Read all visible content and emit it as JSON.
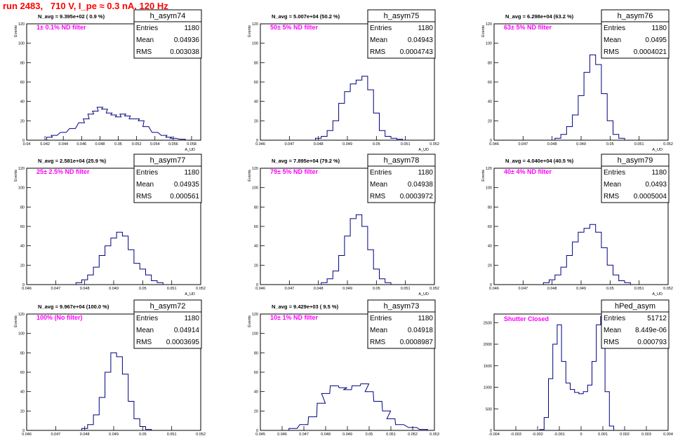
{
  "header": {
    "run_title": "run 2483,   710 V, I_pe ≈ 0.3 nA, 120 Hz"
  },
  "colors": {
    "title": "#ff0000",
    "histogram": "#000080",
    "annotation": "#ff00ff",
    "axis": "#000000"
  },
  "stat_labels": [
    "Entries",
    "Mean",
    "RMS"
  ],
  "chart_data": [
    {
      "type": "histogram",
      "name": "h_asym74",
      "navg": "N_avg = 9.395e+02 ( 0.9 %)",
      "filter": "1± 0.1% ND filter",
      "stats": [
        "1180",
        "0.04936",
        "0.003038"
      ],
      "ylabel": "Events",
      "xlabel": "A_UD",
      "xlim": [
        0.04,
        0.059
      ],
      "ylim": [
        0,
        120
      ],
      "xticks": [
        "0.04",
        "0.042",
        "0.044",
        "0.046",
        "0.048",
        "0.05",
        "0.052",
        "0.054",
        "0.056",
        "0.058"
      ],
      "xtick_values": [
        0.04,
        0.042,
        0.044,
        0.046,
        0.048,
        0.05,
        0.052,
        0.054,
        0.056,
        0.058
      ],
      "yticks": [
        "0",
        "20",
        "40",
        "60",
        "80",
        "100",
        "120"
      ],
      "x": [
        0.0425,
        0.043,
        0.044,
        0.045,
        0.046,
        0.0465,
        0.047,
        0.0475,
        0.048,
        0.0485,
        0.049,
        0.0495,
        0.05,
        0.0505,
        0.051,
        0.0515,
        0.052,
        0.0525,
        0.053,
        0.054,
        0.055,
        0.0555,
        0.056,
        0.057
      ],
      "y": [
        3,
        5,
        8,
        12,
        18,
        22,
        27,
        30,
        34,
        32,
        28,
        26,
        24,
        27,
        25,
        22,
        22,
        20,
        14,
        8,
        5,
        3,
        2,
        1
      ]
    },
    {
      "type": "histogram",
      "name": "h_asym75",
      "navg": "N_avg = 5.007e+04 (50.2 %)",
      "filter": "50± 5% ND filter",
      "stats": [
        "1180",
        "0.04943",
        "0.0004743"
      ],
      "ylabel": "Events",
      "xlabel": "A_UD",
      "xlim": [
        0.046,
        0.052
      ],
      "ylim": [
        0,
        120
      ],
      "xticks": [
        "0.046",
        "0.047",
        "0.048",
        "0.049",
        "0.05",
        "0.051",
        "0.052"
      ],
      "xtick_values": [
        0.046,
        0.047,
        0.048,
        0.049,
        0.05,
        0.051,
        0.052
      ],
      "yticks": [
        "0",
        "20",
        "40",
        "60",
        "80",
        "100",
        "120"
      ],
      "x": [
        0.048,
        0.0482,
        0.0484,
        0.0486,
        0.0488,
        0.049,
        0.0492,
        0.0494,
        0.0496,
        0.0498,
        0.05,
        0.0502,
        0.0504,
        0.0506,
        0.0508
      ],
      "y": [
        2,
        4,
        10,
        20,
        38,
        50,
        58,
        62,
        66,
        52,
        28,
        10,
        4,
        2,
        1
      ]
    },
    {
      "type": "histogram",
      "name": "h_asym76",
      "navg": "N_avg = 6.298e+04 (63.2 %)",
      "filter": "63± 5% ND filter",
      "stats": [
        "1180",
        "0.0495",
        "0.0004021"
      ],
      "ylabel": "Events",
      "xlabel": "A_UD",
      "xlim": [
        0.046,
        0.052
      ],
      "ylim": [
        0,
        120
      ],
      "xticks": [
        "0.046",
        "0.047",
        "0.048",
        "0.049",
        "0.05",
        "0.051",
        "0.052"
      ],
      "xtick_values": [
        0.046,
        0.047,
        0.048,
        0.049,
        0.05,
        0.051,
        0.052
      ],
      "yticks": [
        "0",
        "20",
        "40",
        "60",
        "80",
        "100",
        "120"
      ],
      "x": [
        0.0482,
        0.0484,
        0.0486,
        0.0488,
        0.049,
        0.0492,
        0.0494,
        0.0496,
        0.0498,
        0.05,
        0.0502,
        0.0504
      ],
      "y": [
        2,
        6,
        14,
        26,
        46,
        70,
        88,
        78,
        48,
        20,
        6,
        2
      ]
    },
    {
      "type": "histogram",
      "name": "h_asym77",
      "navg": "N_avg = 2.581e+04 (25.9 %)",
      "filter": "25± 2.5% ND filter",
      "stats": [
        "1180",
        "0.04935",
        "0.000561"
      ],
      "ylabel": "Events",
      "xlabel": "A_UD",
      "xlim": [
        0.046,
        0.052
      ],
      "ylim": [
        0,
        120
      ],
      "xticks": [
        "0.046",
        "0.047",
        "0.048",
        "0.049",
        "0.05",
        "0.051",
        "0.052"
      ],
      "xtick_values": [
        0.046,
        0.047,
        0.048,
        0.049,
        0.05,
        0.051,
        0.052
      ],
      "yticks": [
        "0",
        "20",
        "40",
        "60",
        "80",
        "100",
        "120"
      ],
      "x": [
        0.0478,
        0.048,
        0.0482,
        0.0484,
        0.0486,
        0.0488,
        0.049,
        0.0492,
        0.0494,
        0.0496,
        0.0498,
        0.05,
        0.0502,
        0.0504,
        0.0506
      ],
      "y": [
        2,
        5,
        10,
        18,
        30,
        40,
        48,
        54,
        50,
        36,
        22,
        16,
        10,
        4,
        2
      ]
    },
    {
      "type": "histogram",
      "name": "h_asym78",
      "navg": "N_avg = 7.895e+04 (79.2 %)",
      "filter": "79± 5% ND filter",
      "stats": [
        "1180",
        "0.04938",
        "0.0003972"
      ],
      "ylabel": "Events",
      "xlabel": "A_UD",
      "xlim": [
        0.046,
        0.052
      ],
      "ylim": [
        0,
        120
      ],
      "xticks": [
        "0.046",
        "0.047",
        "0.048",
        "0.049",
        "0.05",
        "0.051",
        "0.052"
      ],
      "xtick_values": [
        0.046,
        0.047,
        0.048,
        0.049,
        0.05,
        0.051,
        0.052
      ],
      "yticks": [
        "0",
        "20",
        "40",
        "60",
        "80",
        "100",
        "120"
      ],
      "x": [
        0.0482,
        0.0484,
        0.0486,
        0.0488,
        0.049,
        0.0492,
        0.0494,
        0.0496,
        0.0498,
        0.05,
        0.0502,
        0.0504
      ],
      "y": [
        2,
        6,
        14,
        30,
        50,
        68,
        72,
        60,
        36,
        16,
        6,
        2
      ]
    },
    {
      "type": "histogram",
      "name": "h_asym79",
      "navg": "N_avg = 4.040e+04 (40.5 %)",
      "filter": "40± 4% ND filter",
      "stats": [
        "1180",
        "0.0493",
        "0.0005004"
      ],
      "ylabel": "Events",
      "xlabel": "A_UD",
      "xlim": [
        0.046,
        0.052
      ],
      "ylim": [
        0,
        120
      ],
      "xticks": [
        "0.046",
        "0.047",
        "0.048",
        "0.049",
        "0.05",
        "0.051",
        "0.052"
      ],
      "xtick_values": [
        0.046,
        0.047,
        0.048,
        0.049,
        0.05,
        0.051,
        0.052
      ],
      "yticks": [
        "0",
        "20",
        "40",
        "60",
        "80",
        "100",
        "120"
      ],
      "x": [
        0.0478,
        0.048,
        0.0482,
        0.0484,
        0.0486,
        0.0488,
        0.049,
        0.0492,
        0.0494,
        0.0496,
        0.0498,
        0.05,
        0.0502,
        0.0504,
        0.0506
      ],
      "y": [
        2,
        5,
        10,
        18,
        30,
        44,
        54,
        58,
        62,
        54,
        38,
        20,
        10,
        4,
        2
      ]
    },
    {
      "type": "histogram",
      "name": "h_asym72",
      "navg": "N_avg = 9.967e+04 (100.0 %)",
      "filter": "100% (No filter)",
      "stats": [
        "1180",
        "0.04914",
        "0.0003695"
      ],
      "ylabel": "Events",
      "xlabel": "A_UD",
      "xlim": [
        0.046,
        0.052
      ],
      "ylim": [
        0,
        120
      ],
      "xticks": [
        "0.046",
        "0.047",
        "0.048",
        "0.049",
        "0.05",
        "0.051",
        "0.052"
      ],
      "xtick_values": [
        0.046,
        0.047,
        0.048,
        0.049,
        0.05,
        0.051,
        0.052
      ],
      "yticks": [
        "0",
        "20",
        "40",
        "60",
        "80",
        "100",
        "120"
      ],
      "x": [
        0.048,
        0.0482,
        0.0484,
        0.0486,
        0.0488,
        0.049,
        0.0492,
        0.0494,
        0.0496,
        0.0498,
        0.05,
        0.0502
      ],
      "y": [
        2,
        6,
        16,
        34,
        60,
        80,
        76,
        58,
        30,
        12,
        4,
        1
      ]
    },
    {
      "type": "histogram",
      "name": "h_asym73",
      "navg": "N_avg = 9.429e+03 ( 9.5 %)",
      "filter": "10± 1% ND filter",
      "stats": [
        "1180",
        "0.04918",
        "0.0008987"
      ],
      "ylabel": "Events",
      "xlabel": "A_UD",
      "xlim": [
        0.045,
        0.053
      ],
      "ylim": [
        0,
        120
      ],
      "xticks": [
        "0.045",
        "0.046",
        "0.047",
        "0.048",
        "0.049",
        "0.05",
        "0.051",
        "0.052",
        "0.053"
      ],
      "xtick_values": [
        0.045,
        0.046,
        0.047,
        0.048,
        0.049,
        0.05,
        0.051,
        0.052,
        0.053
      ],
      "yticks": [
        "0",
        "20",
        "40",
        "60",
        "80",
        "100",
        "120"
      ],
      "x": [
        0.0465,
        0.047,
        0.0474,
        0.0478,
        0.048,
        0.0484,
        0.0488,
        0.049,
        0.0494,
        0.0498,
        0.05,
        0.0504,
        0.0508,
        0.051,
        0.0514,
        0.052,
        0.0525
      ],
      "y": [
        2,
        6,
        14,
        28,
        38,
        46,
        44,
        42,
        46,
        48,
        40,
        30,
        20,
        12,
        6,
        3,
        1
      ]
    },
    {
      "type": "histogram",
      "name": "hPed_asym",
      "navg": "",
      "filter": "Shutter Closed",
      "stats": [
        "51712",
        "8.449e-06",
        "0.000793"
      ],
      "ylabel": "",
      "xlabel": "",
      "xlim": [
        -0.004,
        0.004
      ],
      "ylim": [
        0,
        2700
      ],
      "xticks": [
        "-0.004",
        "-0.003",
        "-0.002",
        "-0.001",
        "0",
        "0.001",
        "0.002",
        "0.003",
        "0.004"
      ],
      "xtick_values": [
        -0.004,
        -0.003,
        -0.002,
        -0.001,
        0,
        0.001,
        0.002,
        0.003,
        0.004
      ],
      "yticks": [
        "0",
        "500",
        "1000",
        "1500",
        "2000",
        "2500"
      ],
      "ytick_values": [
        0,
        500,
        1000,
        1500,
        2000,
        2500
      ],
      "x": [
        -0.0018,
        -0.0016,
        -0.0014,
        -0.0012,
        -0.001,
        -0.0008,
        -0.0006,
        -0.0004,
        -0.0002,
        0,
        0.0002,
        0.0004,
        0.0006,
        0.0008,
        0.001,
        0.0012,
        0.0014
      ],
      "y": [
        20,
        300,
        1200,
        2000,
        2450,
        1600,
        1100,
        950,
        880,
        850,
        900,
        1050,
        1600,
        2450,
        2650,
        900,
        100
      ]
    }
  ]
}
